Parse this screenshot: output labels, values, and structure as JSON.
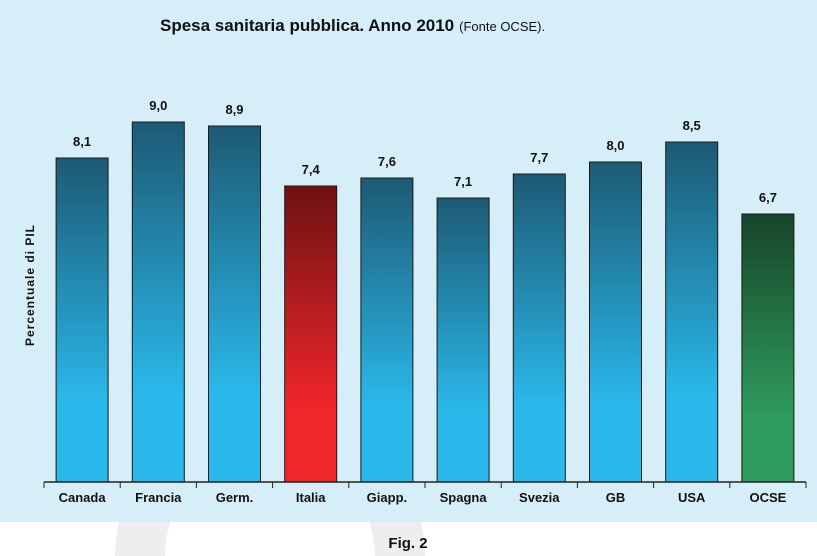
{
  "chart_data": {
    "type": "bar",
    "title": "Spesa sanitaria pubblica. Anno 2010",
    "subtitle": "(Fonte OCSE).",
    "ylabel": "Percentuale di PIL",
    "xlabel": "",
    "caption": "Fig. 2",
    "categories": [
      "Canada",
      "Francia",
      "Germ.",
      "Italia",
      "Giapp.",
      "Spagna",
      "Svezia",
      "GB",
      "USA",
      "OCSE"
    ],
    "values": [
      8.1,
      9.0,
      8.9,
      7.4,
      7.6,
      7.1,
      7.7,
      8.0,
      8.5,
      6.7
    ],
    "value_labels": [
      "8,1",
      "9,0",
      "8,9",
      "7,4",
      "7,6",
      "7,1",
      "7,7",
      "8,0",
      "8,5",
      "6,7"
    ],
    "ylim": [
      0,
      9.0
    ],
    "grid": false,
    "colors": {
      "default": [
        "#1d5a74",
        "#2ab8ea"
      ],
      "Italia": [
        "#6e1212",
        "#f0262b"
      ],
      "OCSE": [
        "#17452a",
        "#2f9b5c"
      ],
      "background": "#d6eef7"
    }
  }
}
